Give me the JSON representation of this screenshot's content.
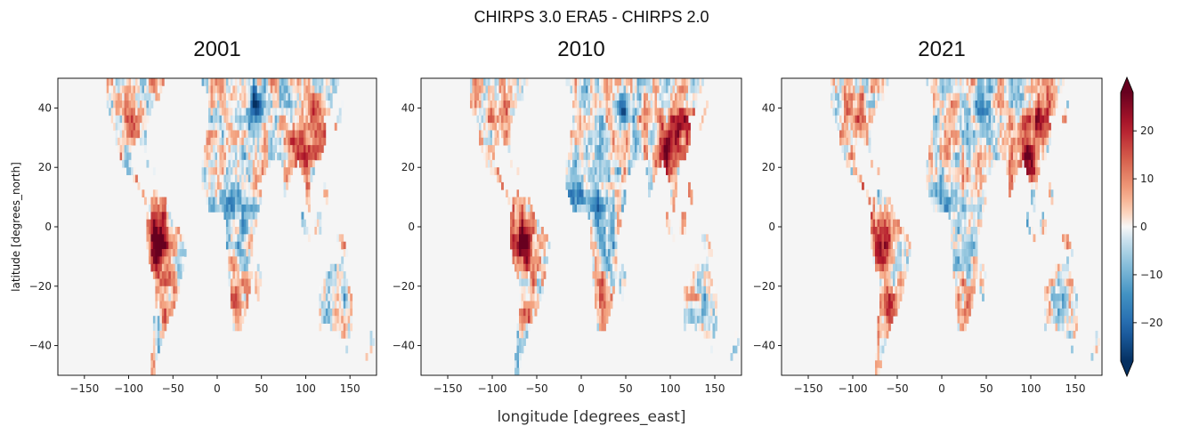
{
  "chart_data": {
    "type": "heatmap",
    "title": "CHIRPS 3.0 ERA5 - CHIRPS 2.0",
    "xlabel": "longitude [degrees_east]",
    "ylabel": "latitude [degrees_north]",
    "xlim": [
      -180,
      180
    ],
    "ylim": [
      -50,
      50
    ],
    "x_ticks": [
      "−150",
      "−100",
      "−50",
      "0",
      "50",
      "100",
      "150"
    ],
    "x_tick_values": [
      -150,
      -100,
      -50,
      0,
      50,
      100,
      150
    ],
    "y_ticks": [
      "40",
      "20",
      "0",
      "−20",
      "−40"
    ],
    "y_tick_values": [
      40,
      20,
      0,
      -20,
      -40
    ],
    "colorbar": {
      "colormap": "RdBu_r",
      "range": [
        -28,
        28
      ],
      "extend": "both",
      "ticks": [
        "20",
        "10",
        "0",
        "−10",
        "−20"
      ],
      "tick_values": [
        20,
        10,
        0,
        -10,
        -20
      ]
    },
    "panels": [
      {
        "title": "2001"
      },
      {
        "title": "2010"
      },
      {
        "title": "2021"
      }
    ],
    "colors": {
      "land_neutral": "#f5f5f5",
      "red": "#67001f",
      "blue": "#053061"
    }
  }
}
